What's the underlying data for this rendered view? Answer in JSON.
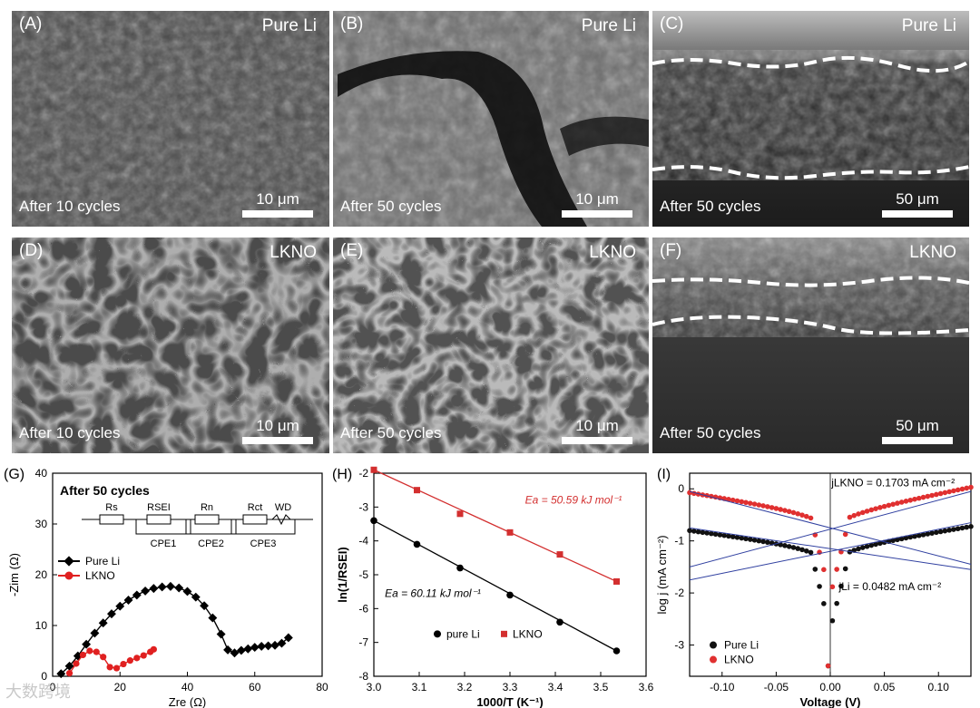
{
  "panels": {
    "A": {
      "label": "(A)",
      "material": "Pure Li",
      "caption": "After 10 cycles",
      "scale": "10 μm"
    },
    "B": {
      "label": "(B)",
      "material": "Pure Li",
      "caption": "After 50 cycles",
      "scale": "10 μm"
    },
    "C": {
      "label": "(C)",
      "material": "Pure Li",
      "caption": "After 50 cycles",
      "scale": "50 μm"
    },
    "D": {
      "label": "(D)",
      "material": "LKNO",
      "caption": "After 10 cycles",
      "scale": "10 μm"
    },
    "E": {
      "label": "(E)",
      "material": "LKNO",
      "caption": "After 50 cycles",
      "scale": "10 μm"
    },
    "F": {
      "label": "(F)",
      "material": "LKNO",
      "caption": "After 50 cycles",
      "scale": "50 μm"
    }
  },
  "watermark": "大数跨境",
  "chart_data": [
    {
      "id": "G",
      "label": "(G)",
      "type": "scatter",
      "title": "After 50 cycles",
      "xlabel": "Zre (Ω)",
      "ylabel": "-Zim (Ω)",
      "xlim": [
        0,
        80
      ],
      "ylim": [
        0,
        40
      ],
      "xticks": [
        0,
        20,
        40,
        60,
        80
      ],
      "yticks": [
        0,
        10,
        20,
        30,
        40
      ],
      "circuit": {
        "labels": [
          "Rs",
          "RSEI",
          "Rn",
          "Rct",
          "WD"
        ],
        "cpe": [
          "CPE1",
          "CPE2",
          "CPE3"
        ]
      },
      "series": [
        {
          "name": "Pure Li",
          "color": "#000000",
          "marker": "diamond",
          "x": [
            2.5,
            5,
            7.5,
            10,
            12.5,
            15,
            17.5,
            20,
            22.5,
            25,
            27.5,
            30,
            32.5,
            35,
            37.5,
            40,
            42.5,
            45,
            47.5,
            50,
            52,
            54,
            56,
            58,
            60,
            62,
            64,
            66,
            68,
            70
          ],
          "y": [
            0.5,
            2,
            4,
            6.3,
            8.5,
            10.5,
            12.3,
            13.8,
            15,
            16,
            16.8,
            17.3,
            17.6,
            17.7,
            17.4,
            16.7,
            15.6,
            13.9,
            11.5,
            8.3,
            5.2,
            4.6,
            5.1,
            5.4,
            5.7,
            5.9,
            6.0,
            6.1,
            6.5,
            7.6
          ]
        },
        {
          "name": "LKNO",
          "color": "#e02020",
          "marker": "circle",
          "x": [
            5,
            7,
            9,
            11,
            13,
            15,
            17,
            19,
            21,
            23,
            25,
            27,
            29,
            30
          ],
          "y": [
            0.6,
            2.5,
            4.2,
            5.0,
            4.8,
            3.8,
            1.8,
            1.6,
            2.4,
            3.1,
            3.6,
            4.1,
            4.8,
            5.3
          ]
        }
      ]
    },
    {
      "id": "H",
      "label": "(H)",
      "type": "scatter",
      "xlabel": "1000/T (K⁻¹)",
      "ylabel": "ln(1/RSEI)",
      "xlim": [
        3.0,
        3.6
      ],
      "ylim": [
        -8,
        -2
      ],
      "xticks": [
        "3.0",
        "3.1",
        "3.2",
        "3.3",
        "3.4",
        "3.5",
        "3.6"
      ],
      "yticks": [
        "-2",
        "-3",
        "-4",
        "-5",
        "-6",
        "-7",
        "-8"
      ],
      "annotations": [
        {
          "text": "Ea = 50.59 kJ mol⁻¹",
          "color": "#d32f2f"
        },
        {
          "text": "Ea = 60.11 kJ mol⁻¹",
          "color": "#000000"
        }
      ],
      "series": [
        {
          "name": "pure Li",
          "color": "#000000",
          "marker": "circle",
          "x": [
            3.0,
            3.095,
            3.19,
            3.3,
            3.41,
            3.535
          ],
          "y": [
            -3.4,
            -4.1,
            -4.8,
            -5.6,
            -6.4,
            -7.25
          ]
        },
        {
          "name": "LKNO",
          "color": "#d32f2f",
          "marker": "square",
          "x": [
            3.0,
            3.095,
            3.19,
            3.3,
            3.41,
            3.535
          ],
          "y": [
            -1.9,
            -2.5,
            -3.2,
            -3.75,
            -4.4,
            -5.2
          ]
        }
      ]
    },
    {
      "id": "I",
      "label": "(I)",
      "type": "scatter",
      "xlabel": "Voltage (V)",
      "ylabel": "log j (mA cm⁻²)",
      "xlim": [
        -0.13,
        0.13
      ],
      "ylim": [
        -3.6,
        0.3
      ],
      "xticks": [
        "-0.10",
        "-0.05",
        "0.00",
        "0.05",
        "0.10"
      ],
      "yticks": [
        "0",
        "-1",
        "-2",
        "-3"
      ],
      "annotations": [
        {
          "text": "jLKNO = 0.1703 mA cm⁻²"
        },
        {
          "text": "jLi = 0.0482 mA cm⁻²"
        }
      ],
      "series": [
        {
          "name": "Pure Li",
          "color": "#111111",
          "marker": "circle"
        },
        {
          "name": "LKNO",
          "color": "#e03030",
          "marker": "circle"
        }
      ]
    }
  ]
}
